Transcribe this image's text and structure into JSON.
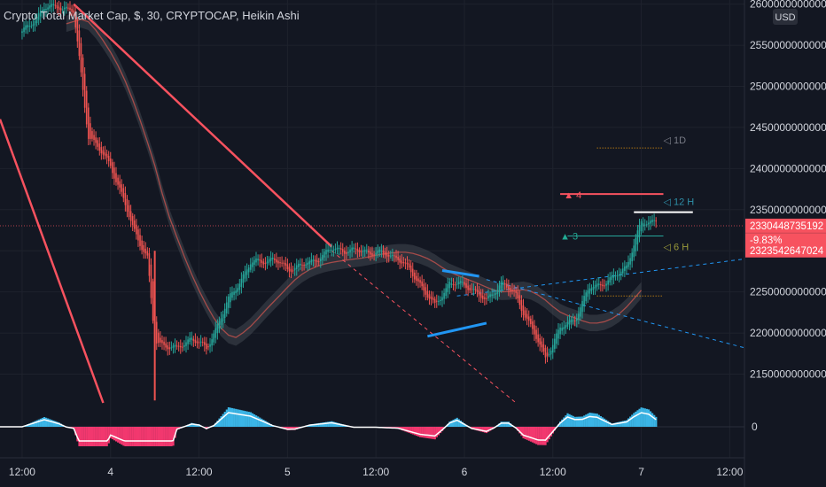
{
  "chart_data": {
    "type": "candlestick",
    "title": "Crypto Total Market Cap, $, 30, CRYPTOCAP, Heikin Ashi",
    "currency_label": "USD",
    "y_ticks": [
      2150000000000,
      2200000000000,
      2250000000000,
      2300000000000,
      2350000000000,
      2400000000000,
      2450000000000,
      2500000000000,
      2550000000000,
      2600000000000
    ],
    "y_tick_labels": [
      "2150000000000",
      "2200000000000",
      "2250000000000",
      "2300000000000",
      "2350000000000",
      "2400000000000",
      "2450000000000",
      "2500000000000",
      "2550000000000",
      "2600000000000"
    ],
    "ylim": [
      2115000000000,
      2605000000000
    ],
    "x_ticks": [
      {
        "label": "12:00",
        "x": 0
      },
      {
        "label": "4",
        "x": 24
      },
      {
        "label": "12:00",
        "x": 48
      },
      {
        "label": "5",
        "x": 72
      },
      {
        "label": "12:00",
        "x": 96
      },
      {
        "label": "6",
        "x": 120
      },
      {
        "label": "12:00",
        "x": 144
      },
      {
        "label": "7",
        "x": 168
      },
      {
        "label": "12:00",
        "x": 192
      }
    ],
    "xlim": [
      -6,
      196
    ],
    "last_candle_x": 172,
    "price_tags": [
      {
        "label": "2330448735192",
        "value": 2330448735192,
        "color": "#f7525f"
      },
      {
        "label": "-9.83%",
        "value": 2313000000000,
        "color": "#f7525f"
      },
      {
        "label": "2323542647024",
        "value": 2300500000000,
        "color": "#f7525f"
      }
    ],
    "current_price": 2330448735192,
    "annotations": [
      {
        "label": "◁ 1D",
        "value": 2435000000000,
        "x": 174,
        "color": "#787b86"
      },
      {
        "label": "◁ 12 H",
        "value": 2360000000000,
        "x": 174,
        "color": "#2e8fa8"
      },
      {
        "label": "◁ 6 H",
        "value": 2305000000000,
        "x": 174,
        "color": "#9a9a3a"
      },
      {
        "label": "▲ 3",
        "value": 2318000000000,
        "x": 146,
        "color": "#22ab94"
      },
      {
        "label": "▲ 4",
        "value": 2368000000000,
        "x": 147,
        "color": "#f7525f"
      }
    ],
    "oscillator": {
      "zero_label": "0",
      "ylim": [
        -1,
        1
      ]
    },
    "colors": {
      "background": "#131722",
      "grid": "#1e222d",
      "up": "#26a69a",
      "down": "#ef5350",
      "daily_line": "#5d606b",
      "h12_line": "#1f6f86",
      "h6_line": "#8c8c2e",
      "trend_line": "#f7525f",
      "osc_up": "#3bb5e6",
      "osc_down": "#f2386f"
    }
  }
}
